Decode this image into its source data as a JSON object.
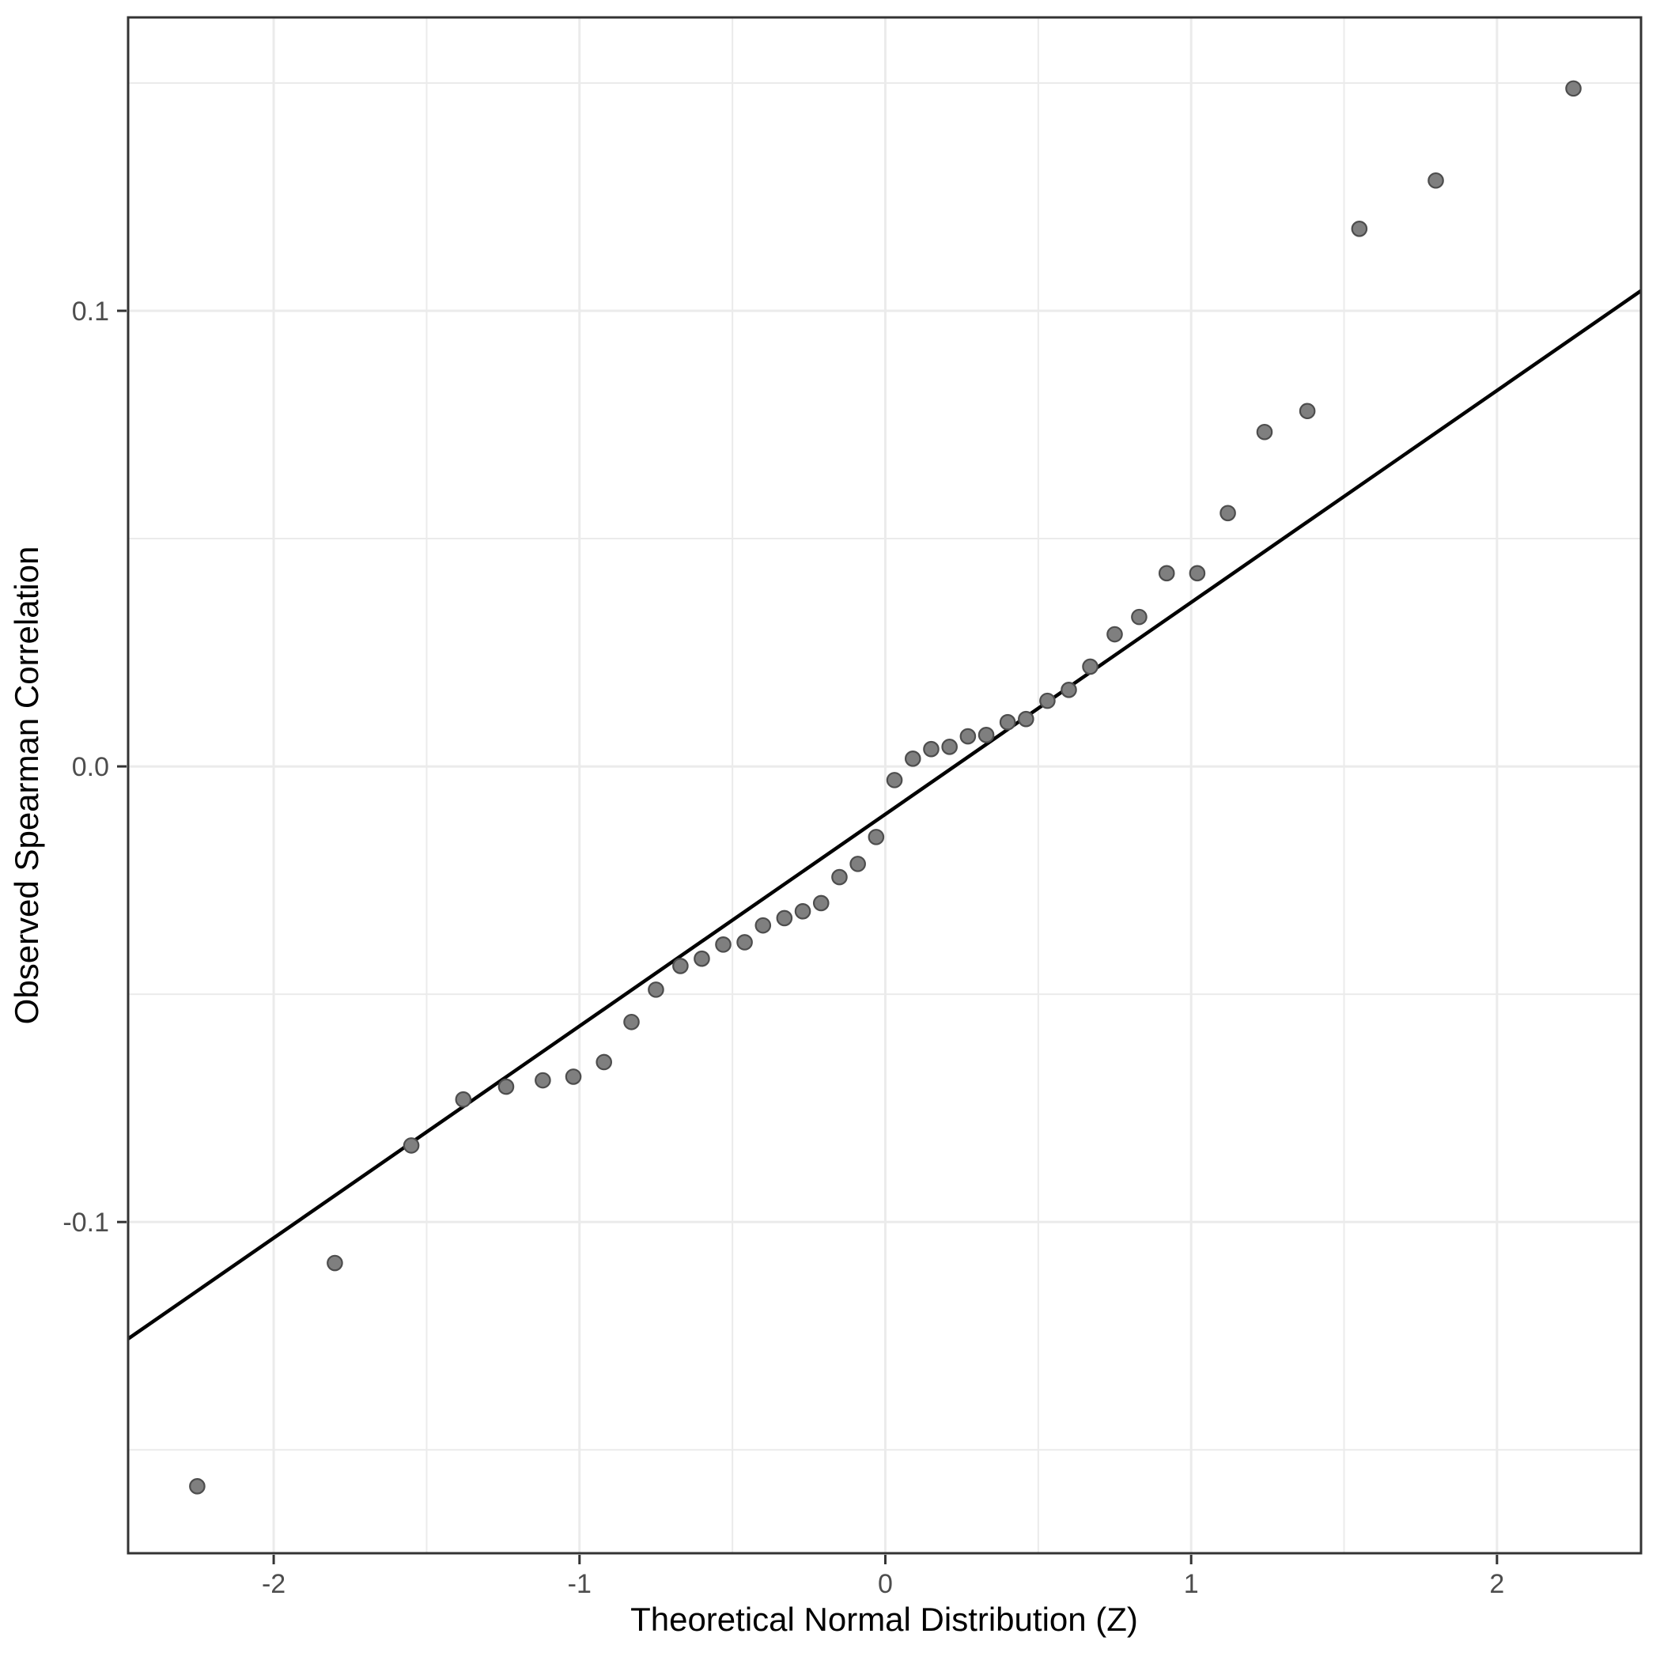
{
  "chart_data": {
    "type": "scatter",
    "title": "",
    "xlabel": "Theoretical Normal Distribution (Z)",
    "ylabel": "Observed Spearman Correlation",
    "xlim": [
      -2.476,
      2.471
    ],
    "ylim": [
      -0.1727,
      0.1644
    ],
    "grid": true,
    "legend": "none",
    "x_tick_values": [
      -2,
      -1,
      0,
      1,
      2
    ],
    "x_tick_labels": [
      "-2",
      "-1",
      "0",
      "1",
      "2"
    ],
    "y_tick_values": [
      0.1,
      0.0,
      -0.1
    ],
    "y_tick_labels": [
      "0.1",
      "0.0",
      "-0.1"
    ],
    "x_minor_gridlines": [
      -1.5,
      -0.5,
      0.5,
      1.5
    ],
    "y_minor_gridlines": [
      0.15,
      0.05,
      -0.05,
      -0.15
    ],
    "ref_line": {
      "slope": 0.0465,
      "intercept": -0.0105
    },
    "points": [
      [
        -2.25,
        -0.158
      ],
      [
        -1.8,
        -0.109
      ],
      [
        -1.55,
        -0.0832
      ],
      [
        -1.38,
        -0.0731
      ],
      [
        -1.24,
        -0.0703
      ],
      [
        -1.12,
        -0.0689
      ],
      [
        -1.02,
        -0.0681
      ],
      [
        -0.92,
        -0.0649
      ],
      [
        -0.83,
        -0.0561
      ],
      [
        -0.75,
        -0.049
      ],
      [
        -0.67,
        -0.0438
      ],
      [
        -0.6,
        -0.0422
      ],
      [
        -0.53,
        -0.0391
      ],
      [
        -0.46,
        -0.0386
      ],
      [
        -0.4,
        -0.0349
      ],
      [
        -0.33,
        -0.0333
      ],
      [
        -0.27,
        -0.0318
      ],
      [
        -0.21,
        -0.03
      ],
      [
        -0.15,
        -0.0243
      ],
      [
        -0.09,
        -0.0214
      ],
      [
        -0.03,
        -0.0155
      ],
      [
        0.03,
        -0.003
      ],
      [
        0.09,
        0.0017
      ],
      [
        0.15,
        0.0038
      ],
      [
        0.21,
        0.0043
      ],
      [
        0.27,
        0.0066
      ],
      [
        0.33,
        0.0069
      ],
      [
        0.4,
        0.0097
      ],
      [
        0.46,
        0.0104
      ],
      [
        0.53,
        0.0144
      ],
      [
        0.6,
        0.0168
      ],
      [
        0.67,
        0.0219
      ],
      [
        0.75,
        0.029
      ],
      [
        0.83,
        0.0328
      ],
      [
        0.92,
        0.0424
      ],
      [
        1.02,
        0.0424
      ],
      [
        1.12,
        0.0556
      ],
      [
        1.24,
        0.0734
      ],
      [
        1.38,
        0.078
      ],
      [
        1.55,
        0.118
      ],
      [
        1.8,
        0.1286
      ],
      [
        2.25,
        0.1488
      ]
    ],
    "colors": {
      "background": "#ffffff",
      "panel_background": "#ffffff",
      "grid_major": "#ebebeb",
      "grid_minor": "#ebebeb",
      "panel_border": "#333333",
      "ref_line": "#000000",
      "point_fill": "#7f7f7f",
      "point_stroke": "#4d4d4d",
      "tick_mark": "#333333",
      "tick_label": "#4d4d4d",
      "axis_title": "#000000"
    }
  }
}
